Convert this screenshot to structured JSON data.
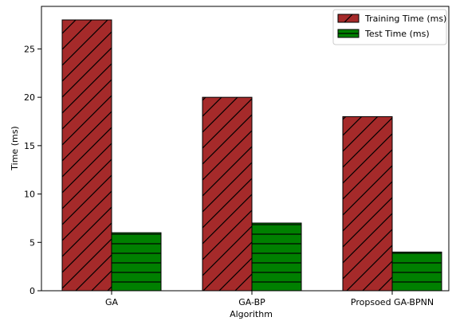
{
  "chart_data": {
    "type": "bar",
    "title": "",
    "xlabel": "Algorithm",
    "ylabel": "Time (ms)",
    "categories": [
      "GA",
      "GA-BP",
      "Propsoed GA-BPNN"
    ],
    "ylim": [
      0,
      29.4
    ],
    "yticks": [
      0,
      5,
      10,
      15,
      20,
      25
    ],
    "grid": false,
    "legend_position": "top-right",
    "series": [
      {
        "name": "Training Time (ms)",
        "values": [
          28,
          20,
          18
        ],
        "color": "#a52a2a",
        "hatch": "diagonal"
      },
      {
        "name": "Test Time (ms)",
        "values": [
          6,
          7,
          4
        ],
        "color": "#008000",
        "hatch": "horizontal"
      }
    ]
  }
}
